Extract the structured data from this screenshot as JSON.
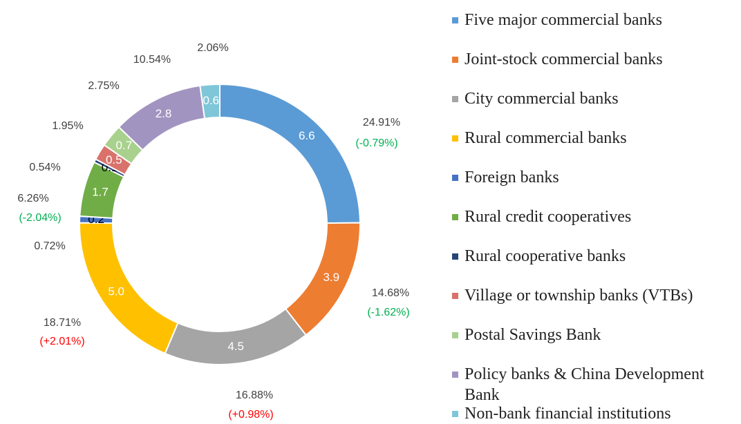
{
  "chart_data": {
    "type": "donut",
    "categories": [
      "Five major commercial banks",
      "Joint-stock commercial banks",
      "City commercial banks",
      "Rural commercial banks",
      "Foreign banks",
      "Rural credit cooperatives",
      "Rural cooperative banks",
      "Village or township banks (VTBs)",
      "Postal Savings Bank",
      "Policy banks & China Development Bank",
      "Non-bank financial institutions"
    ],
    "values": [
      6.6,
      3.9,
      4.5,
      5.0,
      0.2,
      1.7,
      0.1,
      0.5,
      0.7,
      2.8,
      0.6
    ],
    "value_labels": [
      "6.6",
      "3.9",
      "4.5",
      "5.0",
      "0.2",
      "1.7",
      "0.1",
      "0.5",
      "0.7",
      "2.8",
      "0.6"
    ],
    "colors": [
      "#5b9bd5",
      "#ed7d31",
      "#a5a5a5",
      "#ffc000",
      "#4472c4",
      "#70ad47",
      "#264478",
      "#d9726b",
      "#a9d18e",
      "#a294c0",
      "#7fc6d8"
    ],
    "annotations": [
      {
        "share": "24.91%",
        "change": "(-0.79%)",
        "change_color": "#00b050"
      },
      {
        "share": "14.68%",
        "change": "(-1.62%)",
        "change_color": "#00b050"
      },
      {
        "share": "16.88%",
        "change": "(+0.98%)",
        "change_color": "#ff0000"
      },
      {
        "share": "18.71%",
        "change": "(+2.01%)",
        "change_color": "#ff0000"
      },
      {
        "share": "0.72%"
      },
      {
        "share": "6.26%",
        "change": "(-2.04%)",
        "change_color": "#00b050"
      },
      {
        "share": "0.54%"
      },
      {
        "share": "1.95%"
      },
      {
        "share": "2.75%"
      },
      {
        "share": "10.54%"
      },
      {
        "share": "2.06%"
      }
    ]
  }
}
